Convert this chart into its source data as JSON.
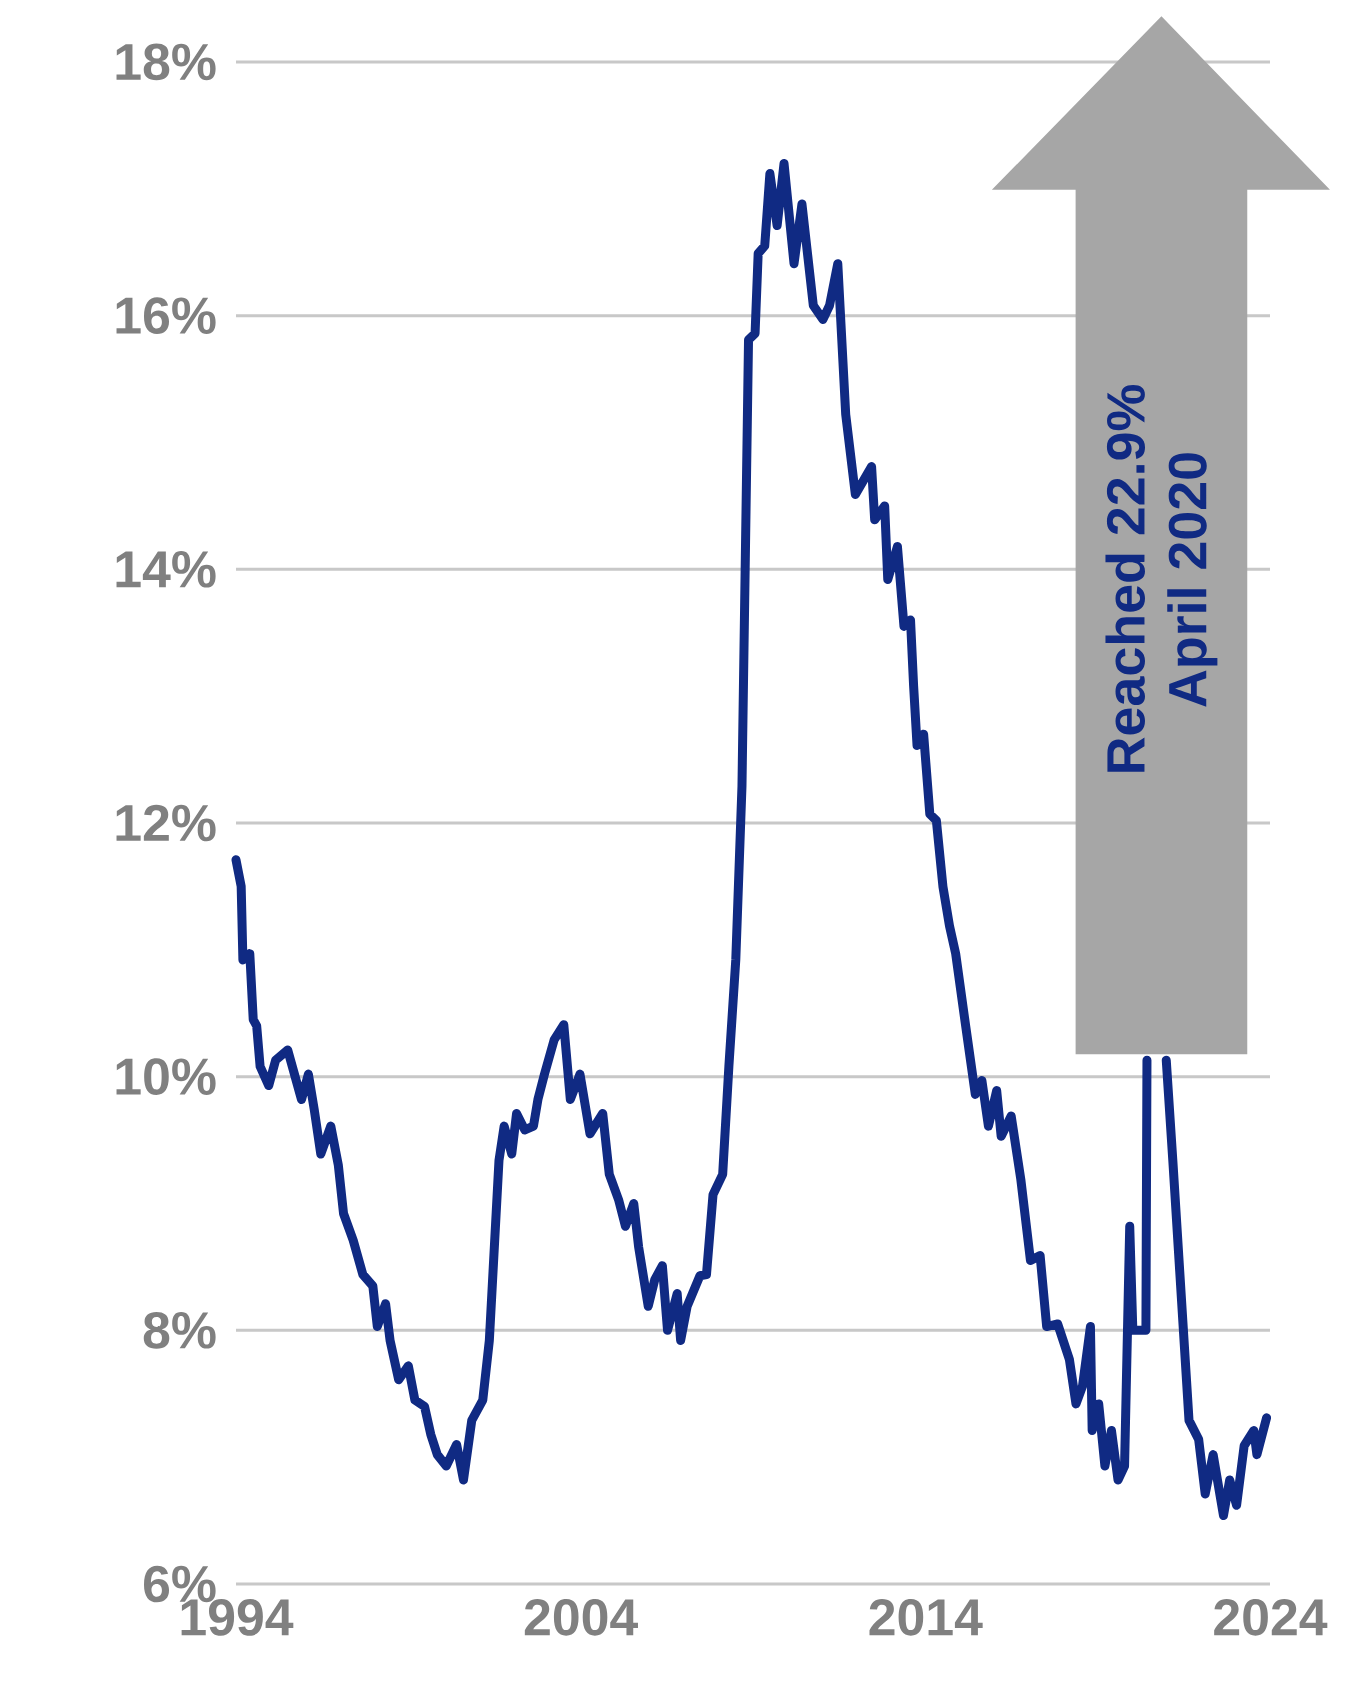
{
  "chart_data": {
    "type": "line",
    "x": [
      1994.0,
      1994.15,
      1994.2,
      1994.4,
      1994.5,
      1994.6,
      1994.7,
      1994.95,
      1995.15,
      1995.5,
      1995.9,
      1996.1,
      1996.27,
      1996.46,
      1996.75,
      1996.97,
      1997.12,
      1997.4,
      1997.68,
      1997.97,
      1998.1,
      1998.34,
      1998.47,
      1998.72,
      1999.0,
      1999.19,
      1999.47,
      1999.65,
      1999.84,
      2000.1,
      2000.4,
      2000.6,
      2000.84,
      2001.16,
      2001.35,
      2001.63,
      2001.78,
      2002.0,
      2002.14,
      2002.38,
      2002.63,
      2002.76,
      2002.95,
      2003.23,
      2003.51,
      2003.7,
      2003.98,
      2004.27,
      2004.64,
      2004.83,
      2005.1,
      2005.3,
      2005.54,
      2005.68,
      2005.96,
      2006.15,
      2006.37,
      2006.52,
      2006.8,
      2006.9,
      2007.09,
      2007.46,
      2007.65,
      2007.84,
      2008.12,
      2008.3,
      2008.5,
      2008.68,
      2008.87,
      2009.06,
      2009.15,
      2009.34,
      2009.49,
      2009.7,
      2009.9,
      2010.19,
      2010.42,
      2010.75,
      2011.03,
      2011.22,
      2011.46,
      2011.69,
      2011.97,
      2012.44,
      2012.53,
      2012.82,
      2012.91,
      2013.19,
      2013.38,
      2013.57,
      2013.66,
      2013.76,
      2013.95,
      2014.13,
      2014.32,
      2014.51,
      2014.7,
      2014.88,
      2015.17,
      2015.45,
      2015.64,
      2015.83,
      2016.07,
      2016.2,
      2016.49,
      2016.77,
      2017.05,
      2017.33,
      2017.52,
      2017.84,
      2018.18,
      2018.37,
      2018.56,
      2018.79,
      2018.84,
      2019.03,
      2019.21,
      2019.4,
      2019.59,
      2019.78,
      2019.93,
      2020.02,
      2020.4,
      2020.43,
      2020.7,
      2020.99,
      2021.18,
      2021.65,
      2021.93,
      2022.12,
      2022.35,
      2022.65,
      2022.83,
      2023.03,
      2023.25,
      2023.53,
      2023.62,
      2023.9
    ],
    "series": [
      {
        "color": "#102a83",
        "values": [
          11.71,
          11.5,
          10.92,
          10.97,
          10.45,
          10.4,
          10.08,
          9.93,
          10.13,
          10.21,
          9.82,
          10.02,
          9.74,
          9.39,
          9.61,
          9.3,
          8.92,
          8.71,
          8.44,
          8.35,
          8.03,
          8.21,
          7.92,
          7.61,
          7.72,
          7.45,
          7.4,
          7.18,
          7.02,
          6.93,
          7.1,
          6.82,
          7.29,
          7.45,
          7.92,
          9.34,
          9.61,
          9.39,
          9.71,
          9.58,
          9.61,
          9.82,
          10.02,
          10.29,
          10.41,
          9.82,
          10.02,
          9.55,
          9.71,
          9.23,
          9.03,
          8.82,
          9.0,
          8.66,
          8.19,
          8.4,
          8.51,
          8.0,
          8.29,
          7.92,
          8.19,
          8.43,
          8.44,
          9.07,
          9.23,
          10.08,
          10.92,
          12.29,
          15.81,
          15.86,
          16.49,
          16.55,
          17.12,
          16.71,
          17.2,
          16.41,
          16.88,
          16.08,
          15.97,
          16.08,
          16.41,
          15.22,
          14.59,
          14.81,
          14.39,
          14.5,
          13.92,
          14.18,
          13.55,
          13.6,
          13.08,
          12.61,
          12.7,
          12.07,
          12.02,
          11.5,
          11.19,
          10.97,
          10.4,
          9.86,
          9.97,
          9.61,
          9.89,
          9.53,
          9.69,
          9.19,
          8.55,
          8.59,
          8.03,
          8.05,
          7.77,
          7.42,
          7.56,
          8.03,
          7.21,
          7.42,
          6.93,
          7.21,
          6.82,
          6.93,
          8.82,
          8.0,
          8.0,
          10.13,
          null,
          10.13,
          9.34,
          7.29,
          7.14,
          6.71,
          7.02,
          6.54,
          6.82,
          6.62,
          7.09,
          7.21,
          7.02,
          7.31
        ]
      }
    ],
    "xlim": [
      1994,
      2024
    ],
    "xticks": [
      1994,
      2004,
      2014,
      2024
    ],
    "ylim": [
      6,
      18
    ],
    "yticks": [
      {
        "value": 6,
        "label": "6%"
      },
      {
        "value": 8,
        "label": "8%"
      },
      {
        "value": 10,
        "label": "10%"
      },
      {
        "value": 12,
        "label": "12%"
      },
      {
        "value": 14,
        "label": "14%"
      },
      {
        "value": 16,
        "label": "16%"
      },
      {
        "value": 18,
        "label": "18%"
      }
    ],
    "grid": "y",
    "marker": "none",
    "line_style": "solid",
    "annotations": [
      "Reached 22.9%",
      "April 2020"
    ]
  }
}
